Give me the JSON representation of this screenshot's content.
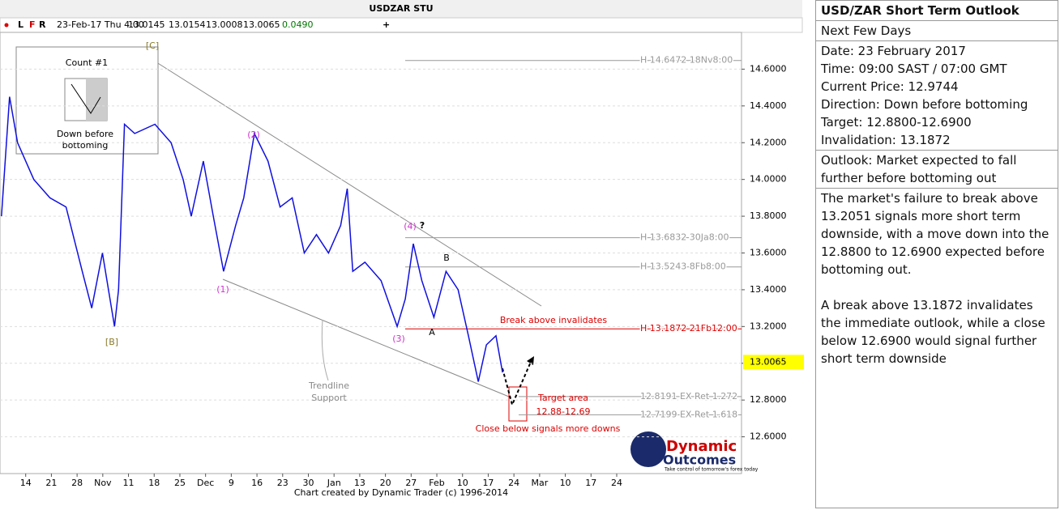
{
  "chart_data": {
    "type": "line",
    "title": "USDZAR STU",
    "toolbar": [
      "L",
      "F",
      "R",
      "23-Feb-17 Thu 4:00",
      "13.0145",
      "13.0154",
      "13.0008",
      "13.0065",
      "0.0490"
    ],
    "x": [
      -6.6,
      -4.4,
      -2.2,
      2.2,
      6.6,
      11.0,
      15.4,
      18.0,
      20.9,
      24.2,
      25.3,
      26.9,
      29.7,
      35.2,
      39.6,
      42.9,
      45.1,
      48.4,
      51.1,
      53.9,
      57.2,
      59.4,
      62.3,
      66.0,
      69.3,
      72.6,
      75.9,
      79.2,
      82.5,
      85.8,
      87.6,
      89.1,
      92.4,
      96.8,
      101.2,
      103.4,
      105.6,
      107.9,
      111.2,
      114.5,
      117.8,
      120.6,
      123.3,
      125.5,
      128.1,
      129.9
    ],
    "series": [
      {
        "color": "#1010e0",
        "values": [
          13.8,
          14.45,
          14.2,
          14.0,
          13.9,
          13.85,
          13.5,
          13.3,
          13.6,
          13.2,
          13.4,
          14.3,
          14.25,
          14.3,
          14.2,
          14.0,
          13.8,
          14.1,
          13.8,
          13.5,
          13.75,
          13.9,
          14.25,
          14.1,
          13.85,
          13.9,
          13.6,
          13.7,
          13.6,
          13.75,
          13.95,
          13.5,
          13.55,
          13.45,
          13.2,
          13.35,
          13.65,
          13.45,
          13.25,
          13.5,
          13.4,
          13.15,
          12.9,
          13.1,
          13.15,
          12.95
        ]
      }
    ],
    "xlim": [
      -7,
      195
    ],
    "xticks": [
      {
        "value": 0,
        "label": "14"
      },
      {
        "value": 7,
        "label": "21"
      },
      {
        "value": 14,
        "label": "28"
      },
      {
        "value": 21,
        "label": "Nov"
      },
      {
        "value": 28,
        "label": "11"
      },
      {
        "value": 35,
        "label": "18"
      },
      {
        "value": 42,
        "label": "25"
      },
      {
        "value": 49,
        "label": "Dec"
      },
      {
        "value": 56,
        "label": "9"
      },
      {
        "value": 63,
        "label": "16"
      },
      {
        "value": 70,
        "label": "23"
      },
      {
        "value": 77,
        "label": "30"
      },
      {
        "value": 84,
        "label": "Jan"
      },
      {
        "value": 91,
        "label": "13"
      },
      {
        "value": 98,
        "label": "20"
      },
      {
        "value": 105,
        "label": "27"
      },
      {
        "value": 112,
        "label": "Feb"
      },
      {
        "value": 119,
        "label": "10"
      },
      {
        "value": 126,
        "label": "17"
      },
      {
        "value": 133,
        "label": "24"
      },
      {
        "value": 140,
        "label": "Mar"
      },
      {
        "value": 147,
        "label": "10"
      },
      {
        "value": 154,
        "label": "17"
      },
      {
        "value": 161,
        "label": "24"
      }
    ],
    "ylim": [
      12.4,
      14.8
    ],
    "yticks": [
      {
        "value": 12.6,
        "label": "12.6000"
      },
      {
        "value": 12.8,
        "label": "12.8000"
      },
      {
        "value": 13.0,
        "label": "13.0000"
      },
      {
        "value": 13.2,
        "label": "13.2000"
      },
      {
        "value": 13.4,
        "label": "13.4000"
      },
      {
        "value": 13.6,
        "label": "13.6000"
      },
      {
        "value": 13.8,
        "label": "13.8000"
      },
      {
        "value": 14.0,
        "label": "14.0000"
      },
      {
        "value": 14.2,
        "label": "14.2000"
      },
      {
        "value": 14.4,
        "label": "14.4000"
      },
      {
        "value": 14.6,
        "label": "14.6000"
      }
    ],
    "grid": true,
    "current_price": 13.0065,
    "levels": [
      {
        "value": 14.6472,
        "label": "H 14.6472 18Nv8:00",
        "color": "#999999"
      },
      {
        "value": 13.6832,
        "label": "H 13.6832 30Ja8:00",
        "color": "#999999"
      },
      {
        "value": 13.5243,
        "label": "H 13.5243 8Fb8:00",
        "color": "#999999"
      },
      {
        "value": 13.1872,
        "label": "H 13.1872 21Fb12:00",
        "color": "#dd0000"
      },
      {
        "value": 12.8191,
        "label": "12.8191 EX Ret 1.272",
        "color": "#999999"
      },
      {
        "value": 12.7199,
        "label": "12.7199 EX Ret 1.618",
        "color": "#999999"
      }
    ],
    "annotations": [
      "[C]",
      "(2)",
      "(1)",
      "[B]",
      "(4)",
      "?",
      "B",
      "A",
      "(3)",
      "Break above invalidates",
      "Target area",
      "12.88-12.69",
      "Close below signals more downs",
      "Trendline",
      "Support"
    ],
    "count_box": {
      "title": "Count #1",
      "caption": [
        "Down before",
        "bottoming"
      ]
    },
    "logo": [
      "Dynamic",
      "Outcomes",
      "Take control of tomorrow's forex today"
    ],
    "footer": "Chart created by Dynamic Trader  (c) 1996-2014"
  },
  "outlook": {
    "title": "USD/ZAR Short Term Outlook",
    "subtitle": "Next Few Days",
    "details": [
      "Date: 23 February 2017",
      "Time: 09:00 SAST / 07:00 GMT",
      "Current Price: 12.9744",
      "Direction:  Down before bottoming",
      "Target:  12.8800-12.6900",
      "Invalidation: 13.1872"
    ],
    "summary": "Outlook:  Market expected to fall further before bottoming out",
    "paragraphs": [
      "The market's failure to break above 13.2051 signals more short term downside, with a move down into the 12.8800 to 12.6900 expected before bottoming out.",
      "A break above 13.1872 invalidates the immediate outlook, while a close below 12.6900 would signal further short term downside"
    ]
  }
}
